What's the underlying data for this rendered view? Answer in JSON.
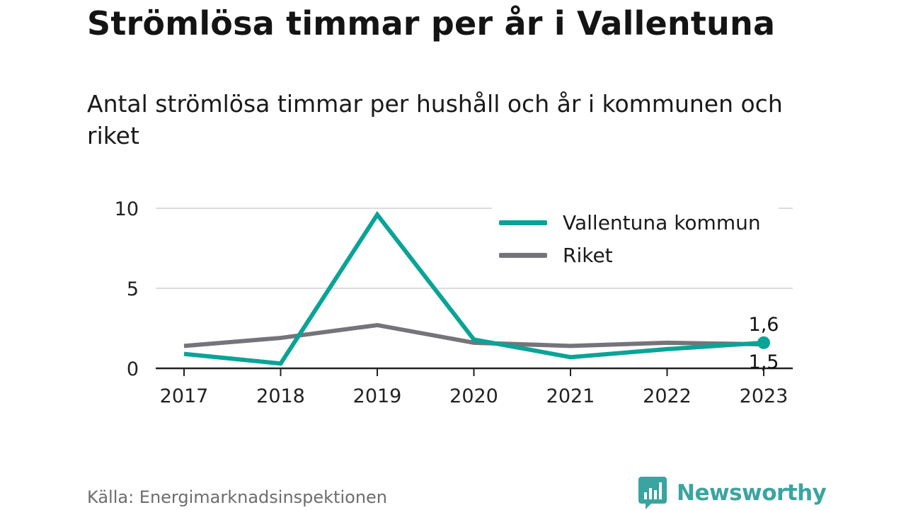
{
  "header": {
    "title": "Strömlösa timmar per år i Vallentuna",
    "subtitle": "Antal strömlösa timmar per hushåll och år i kommunen och riket"
  },
  "footer": {
    "source": "Källa: Energimarknadsinspektionen",
    "brand": "Newsworthy",
    "brand_icon": "newsworthy-logo-icon",
    "brand_color": "#3aa5a0"
  },
  "chart_data": {
    "type": "line",
    "title": "",
    "xlabel": "",
    "ylabel": "",
    "categories": [
      "2017",
      "2018",
      "2019",
      "2020",
      "2021",
      "2022",
      "2023"
    ],
    "ylim": [
      0,
      10
    ],
    "yticks": [
      0,
      5,
      10
    ],
    "ytick_labels": [
      "0",
      "5",
      "10"
    ],
    "grid": true,
    "legend_position": "top-right",
    "series": [
      {
        "name": "Vallentuna kommun",
        "color": "#0aa397",
        "values": [
          0.9,
          0.3,
          9.6,
          1.8,
          0.7,
          1.2,
          1.6
        ],
        "end_label": "1,6"
      },
      {
        "name": "Riket",
        "color": "#75747a",
        "values": [
          1.4,
          1.9,
          2.7,
          1.6,
          1.4,
          1.6,
          1.5
        ],
        "end_label": "1,5"
      }
    ]
  }
}
